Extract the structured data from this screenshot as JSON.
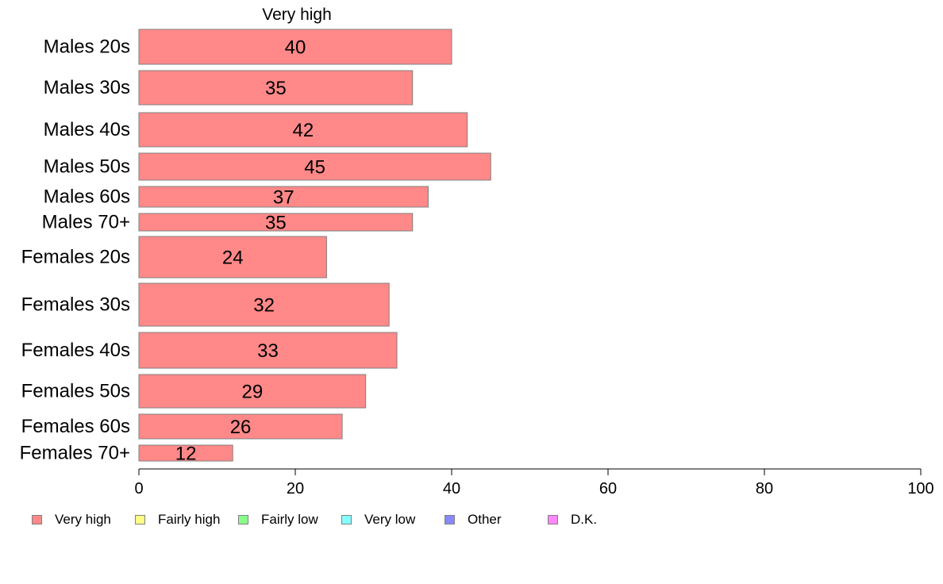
{
  "chart_data": {
    "type": "bar",
    "orientation": "horizontal",
    "title": "Very high",
    "categories": [
      "Males 20s",
      "Males 30s",
      "Males 40s",
      "Males 50s",
      "Males 60s",
      "Males 70+",
      "Females 20s",
      "Females 30s",
      "Females 40s",
      "Females 50s",
      "Females 60s",
      "Females 70+"
    ],
    "series": [
      {
        "name": "Very high",
        "values": [
          40,
          35,
          42,
          45,
          37,
          35,
          24,
          32,
          33,
          29,
          26,
          12
        ]
      }
    ],
    "xlim": [
      0,
      100
    ],
    "xticks": [
      0,
      20,
      40,
      60,
      80,
      100
    ],
    "grid": false,
    "legend_position": "bottom",
    "legend": [
      {
        "label": "Very high",
        "color": "#ff8888"
      },
      {
        "label": "Fairly high",
        "color": "#ffff88"
      },
      {
        "label": "Fairly low",
        "color": "#88ff88"
      },
      {
        "label": "Very low",
        "color": "#88ffff"
      },
      {
        "label": "Other",
        "color": "#8888ff"
      },
      {
        "label": "D.K.",
        "color": "#ff88ff"
      }
    ],
    "bar_color": "#ff8888",
    "bar_edge_color": "#808080"
  }
}
